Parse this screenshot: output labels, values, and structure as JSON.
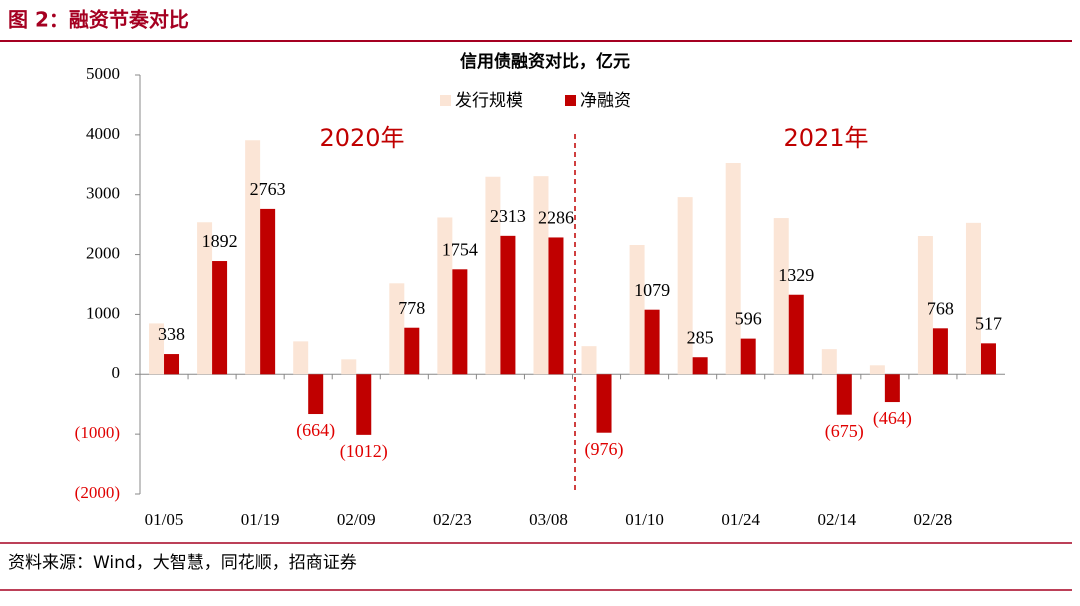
{
  "header": {
    "title": "图 2：融资节奏对比"
  },
  "chart_data": {
    "type": "bar",
    "title": "信用债融资对比，亿元",
    "categories": [
      "01/05",
      null,
      "01/19",
      null,
      "02/09",
      null,
      "02/23",
      null,
      "03/08",
      null,
      "01/10",
      null,
      "01/24",
      null,
      "02/14",
      null,
      "02/28",
      null
    ],
    "series": [
      {
        "name": "发行规模",
        "color": "#fbe5d6",
        "values": [
          850,
          2540,
          3910,
          550,
          250,
          1520,
          2620,
          3300,
          3310,
          470,
          2160,
          2960,
          3530,
          2610,
          420,
          150,
          2310,
          2530
        ]
      },
      {
        "name": "净融资",
        "color": "#c00000",
        "values": [
          338,
          1892,
          2763,
          -664,
          -1012,
          778,
          1754,
          2313,
          2286,
          -976,
          1079,
          285,
          596,
          1329,
          -675,
          -464,
          768,
          517
        ],
        "value_labels": [
          "338",
          "1892",
          "2763",
          "(664)",
          "(1012)",
          "778",
          "1754",
          "2313",
          "2286",
          "(976)",
          "1079",
          "285",
          "596",
          "1329",
          "(675)",
          "(464)",
          "768",
          "517"
        ]
      }
    ],
    "ylim": [
      -2000,
      5000
    ],
    "yticks": [
      {
        "value": -2000,
        "label": "(2000)"
      },
      {
        "value": -1000,
        "label": "(1000)"
      },
      0,
      1000,
      2000,
      3000,
      4000,
      5000
    ],
    "annotations": [
      "2020年",
      "2021年"
    ],
    "legend": "top"
  },
  "footer": {
    "source": "资料来源：Wind，大智慧，同花顺，招商证券"
  }
}
